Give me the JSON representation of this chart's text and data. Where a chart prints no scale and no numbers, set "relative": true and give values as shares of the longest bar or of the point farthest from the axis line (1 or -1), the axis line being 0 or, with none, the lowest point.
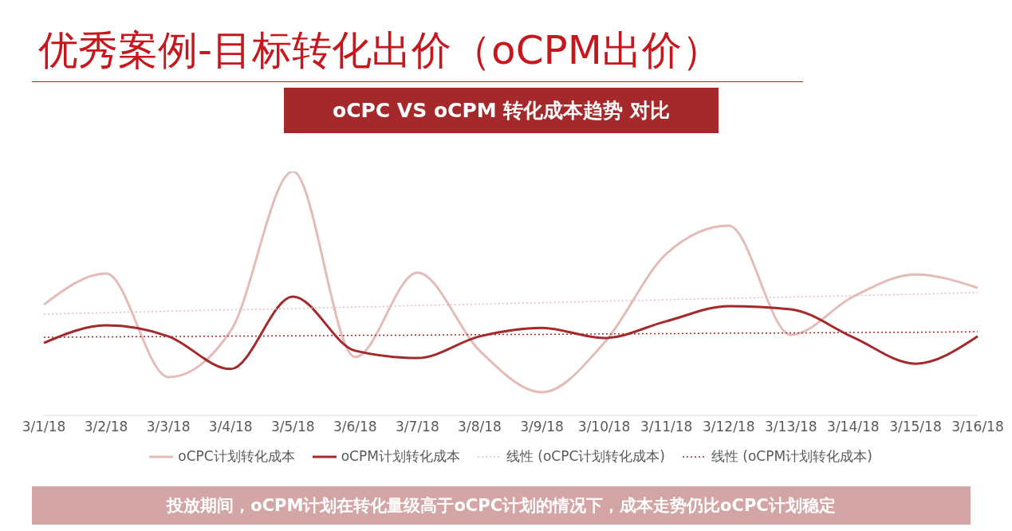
{
  "chart_data": {
    "type": "line",
    "title": "优秀案例-目标转化出价（oCPM出价）",
    "subtitle": "oCPC VS oCPM 转化成本趋势 对比",
    "annotations": [
      "投放期间，oCPM计划在转化量级高于oCPC计划的情况下，成本走势仍比oCPC计划稳定"
    ],
    "relative": true,
    "legend": "bottom",
    "marker": "none",
    "line_style": "solid",
    "categories": [
      "3/1/18",
      "3/2/18",
      "3/3/18",
      "3/4/18",
      "3/5/18",
      "3/6/18",
      "3/7/18",
      "3/8/18",
      "3/9/18",
      "3/10/18",
      "3/11/18",
      "3/12/18",
      "3/13/18",
      "3/14/18",
      "3/15/18",
      "3/16/18"
    ],
    "series": [
      {
        "name": "oCPC计划转化成本",
        "color": "#e3bcb8",
        "values": [
          0.454,
          0.582,
          0.157,
          0.346,
          1,
          0.239,
          0.585,
          0.265,
          0.095,
          0.297,
          0.663,
          0.778,
          0.33,
          0.487,
          0.578,
          0.523
        ]
      },
      {
        "name": "oCPM计划转化成本",
        "color": "#a5282a",
        "values": [
          0.297,
          0.369,
          0.324,
          0.19,
          0.487,
          0.265,
          0.235,
          0.324,
          0.359,
          0.317,
          0.386,
          0.448,
          0.435,
          0.32,
          0.212,
          0.324
        ]
      },
      {
        "name": "线性 (oCPC计划转化成本)",
        "type": "line",
        "line_style": "dotted",
        "color": "#e3bcb8",
        "values": [
          0.415,
          0.421,
          0.427,
          0.433,
          0.438,
          0.444,
          0.45,
          0.456,
          0.462,
          0.468,
          0.474,
          0.48,
          0.485,
          0.491,
          0.497,
          0.503
        ]
      },
      {
        "name": "线性 (oCPM计划转化成本)",
        "type": "line",
        "line_style": "dotted",
        "color": "#a5282a",
        "values": [
          0.32,
          0.322,
          0.323,
          0.325,
          0.326,
          0.328,
          0.329,
          0.331,
          0.332,
          0.334,
          0.335,
          0.337,
          0.338,
          0.34,
          0.341,
          0.343
        ]
      }
    ]
  }
}
